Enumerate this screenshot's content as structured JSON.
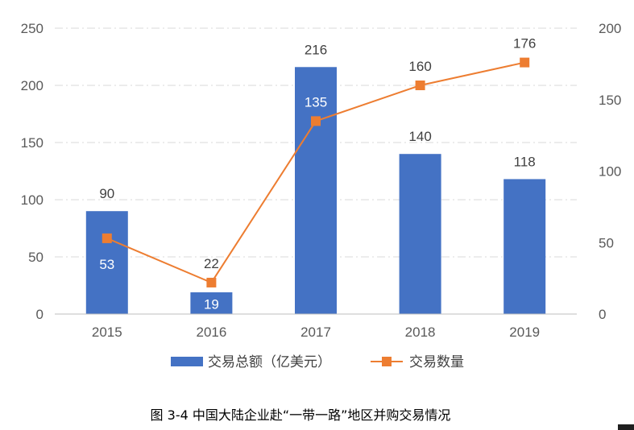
{
  "chart_data": {
    "type": "bar+line",
    "categories": [
      "2015",
      "2016",
      "2017",
      "2018",
      "2019"
    ],
    "series": [
      {
        "name": "交易总额（亿美元）",
        "type": "bar",
        "axis": "left",
        "values": [
          90,
          19,
          216,
          140,
          118
        ],
        "color": "#4472C4"
      },
      {
        "name": "交易数量",
        "type": "line",
        "axis": "right",
        "values": [
          53,
          22,
          135,
          160,
          176
        ],
        "color": "#ED7D31"
      }
    ],
    "y_left": {
      "min": 0,
      "max": 250,
      "ticks": [
        0,
        50,
        100,
        150,
        200,
        250
      ]
    },
    "y_right": {
      "min": 0,
      "max": 200,
      "ticks": [
        0,
        50,
        100,
        150,
        200
      ]
    },
    "grid": "dashed-horizontal",
    "legend_position": "bottom",
    "caption": "图 3-4 中国大陆企业赴“一带一路”地区并购交易情况"
  },
  "colors": {
    "bar": "#4472C4",
    "line": "#ED7D31",
    "grid": "#D9D9D9",
    "axis": "#BFBFBF",
    "tick": "#595959"
  }
}
